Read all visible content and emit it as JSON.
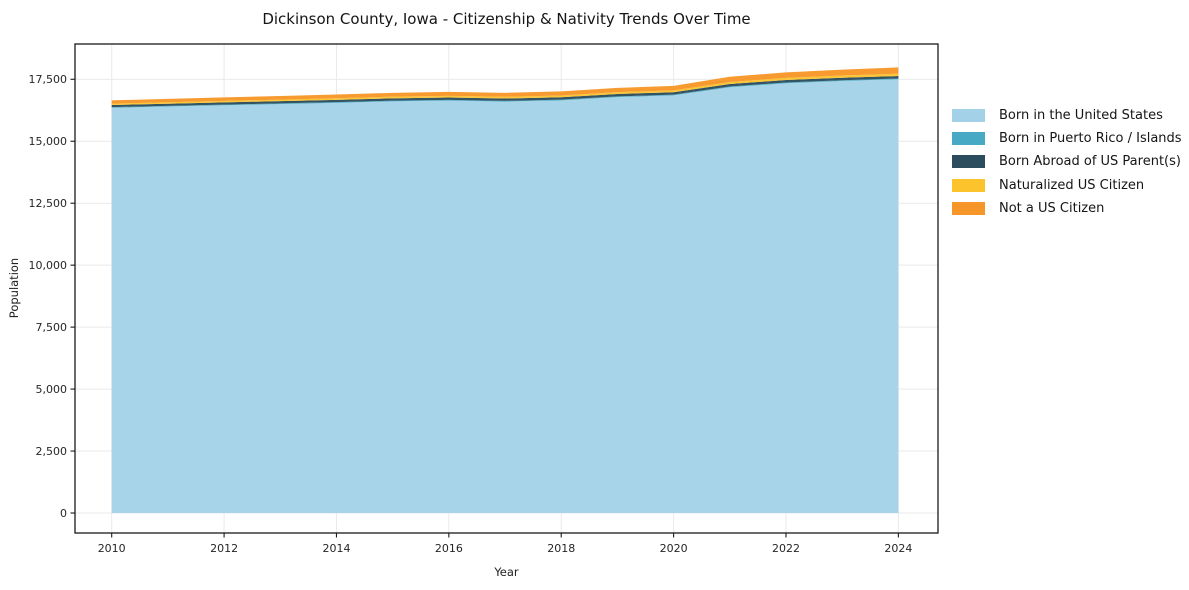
{
  "window": {
    "background": "#ffffff"
  },
  "chart_data": {
    "type": "area",
    "stacked": true,
    "title": "Dickinson County, Iowa - Citizenship & Nativity Trends Over Time",
    "xlabel": "Year",
    "ylabel": "Population",
    "grid": true,
    "legend_position": "right-outside",
    "years": [
      2010,
      2011,
      2012,
      2013,
      2014,
      2015,
      2016,
      2017,
      2018,
      2019,
      2020,
      2021,
      2022,
      2023,
      2024
    ],
    "series": [
      {
        "name": "Born in the United States",
        "color": "#a3d2e8",
        "values": [
          16350,
          16400,
          16450,
          16500,
          16550,
          16610,
          16640,
          16600,
          16650,
          16780,
          16850,
          17180,
          17340,
          17430,
          17500
        ]
      },
      {
        "name": "Born in Puerto Rico / Islands",
        "color": "#47a9c4",
        "values": [
          25,
          25,
          26,
          26,
          27,
          27,
          28,
          28,
          28,
          29,
          29,
          30,
          30,
          31,
          31
        ]
      },
      {
        "name": "Born Abroad of US Parent(s)",
        "color": "#2c4d5d",
        "values": [
          90,
          90,
          92,
          93,
          94,
          95,
          96,
          96,
          97,
          98,
          99,
          100,
          100,
          100,
          100
        ]
      },
      {
        "name": "Naturalized US Citizen",
        "color": "#fcc32d",
        "values": [
          55,
          58,
          60,
          62,
          64,
          66,
          68,
          70,
          72,
          74,
          76,
          80,
          85,
          90,
          95
        ]
      },
      {
        "name": "Not a US Citizen",
        "color": "#f79628",
        "values": [
          130,
          135,
          140,
          145,
          150,
          155,
          160,
          160,
          165,
          170,
          180,
          210,
          225,
          240,
          255
        ]
      }
    ],
    "x_ticks": {
      "values": [
        2010,
        2012,
        2014,
        2016,
        2018,
        2020,
        2022,
        2024
      ],
      "labels": [
        "2010",
        "2012",
        "2014",
        "2016",
        "2018",
        "2020",
        "2022",
        "2024"
      ]
    },
    "y_ticks": {
      "values": [
        0,
        2500,
        5000,
        7500,
        10000,
        12500,
        15000,
        17500
      ],
      "labels": [
        "0",
        "2,500",
        "5,000",
        "7,500",
        "10,000",
        "12,500",
        "15,000",
        "17,500"
      ]
    },
    "colors": {
      "grid": "#e9e9e9",
      "spine": "#1a1a1a",
      "tick_text": "#262626"
    }
  }
}
